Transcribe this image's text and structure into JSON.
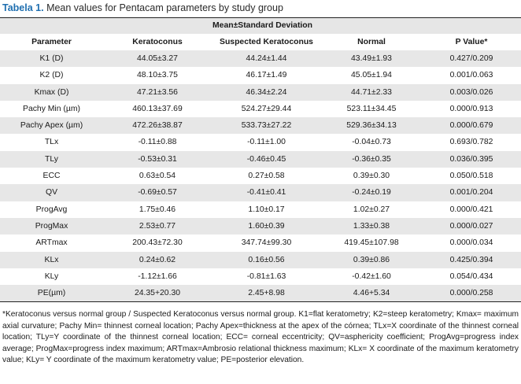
{
  "caption": {
    "label": "Tabela 1.",
    "text": "Mean values for Pentacam parameters by study group"
  },
  "table": {
    "super_header": "Mean±Standard Deviation",
    "columns": [
      "Parameter",
      "Keratoconus",
      "Suspected Keratoconus",
      "Normal",
      "P Value*"
    ],
    "rows": [
      [
        "K1 (D)",
        "44.05±3.27",
        "44.24±1.44",
        "43.49±1.93",
        "0.427/0.209"
      ],
      [
        "K2 (D)",
        "48.10±3.75",
        "46.17±1.49",
        "45.05±1.94",
        "0.001/0.063"
      ],
      [
        "Kmax (D)",
        "47.21±3.56",
        "46.34±2.24",
        "44.71±2.33",
        "0.003/0.026"
      ],
      [
        "Pachy Min (µm)",
        "460.13±37.69",
        "524.27±29.44",
        "523.11±34.45",
        "0.000/0.913"
      ],
      [
        "Pachy Apex (µm)",
        "472.26±38.87",
        "533.73±27.22",
        "529.36±34.13",
        "0.000/0.679"
      ],
      [
        "TLx",
        "-0.11±0.88",
        "-0.11±1.00",
        "-0.04±0.73",
        "0.693/0.782"
      ],
      [
        "TLy",
        "-0.53±0.31",
        "-0.46±0.45",
        "-0.36±0.35",
        "0.036/0.395"
      ],
      [
        "ECC",
        "0.63±0.54",
        "0.27±0.58",
        "0.39±0.30",
        "0.050/0.518"
      ],
      [
        "QV",
        "-0.69±0.57",
        "-0.41±0.41",
        "-0.24±0.19",
        "0.001/0.204"
      ],
      [
        "ProgAvg",
        "1.75±0.46",
        "1.10±0.17",
        "1.02±0.27",
        "0.000/0.421"
      ],
      [
        "ProgMax",
        "2.53±0.77",
        "1.60±0.39",
        "1.33±0.38",
        "0.000/0.027"
      ],
      [
        "ARTmax",
        "200.43±72.30",
        "347.74±99.30",
        "419.45±107.98",
        "0.000/0.034"
      ],
      [
        "KLx",
        "0.24±0.62",
        "0.16±0.56",
        "0.39±0.86",
        "0.425/0.394"
      ],
      [
        "KLy",
        "-1.12±1.66",
        "-0.81±1.63",
        "-0.42±1.60",
        "0.054/0.434"
      ],
      [
        "PE(µm)",
        "24.35+20.30",
        "2.45+8.98",
        "4.46+5.34",
        "0.000/0.258"
      ]
    ]
  },
  "footnote": "*Keratoconus versus normal group / Suspected Keratoconus versus normal group. K1=flat keratometry; K2=steep keratometry; Kmax= maximum axial curvature; Pachy Min= thinnest corneal location; Pachy Apex=thickness at the apex of the córnea; TLx=X coordinate of the thinnest corneal location; TLy=Y coordinate of the thinnest corneal location; ECC= corneal eccentricity; QV=asphericity coefficient; ProgAvg=progress index average; ProgMax=progress index maximum; ARTmax=Ambrosio relational thickness maximum; KLx= X coordinate of the maximum keratometry value; KLy= Y coordinate of the maximum keratometry value; PE=posterior elevation."
}
